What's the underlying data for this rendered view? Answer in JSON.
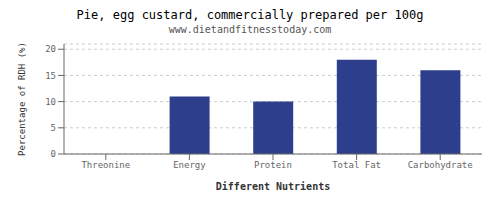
{
  "chart_data": {
    "type": "bar",
    "title": "Pie, egg custard, commercially prepared per 100g",
    "subtitle": "www.dietandfitnesstoday.com",
    "xlabel": "Different Nutrients",
    "ylabel": "Percentage of RDH (%)",
    "categories": [
      "Threonine",
      "Energy",
      "Protein",
      "Total Fat",
      "Carbohydrate"
    ],
    "values": [
      0,
      11,
      10,
      18,
      16
    ],
    "color": "#2d3f8c",
    "ylim": [
      0,
      21
    ],
    "yticks": [
      0,
      5,
      10,
      15,
      20
    ],
    "grid": true
  }
}
